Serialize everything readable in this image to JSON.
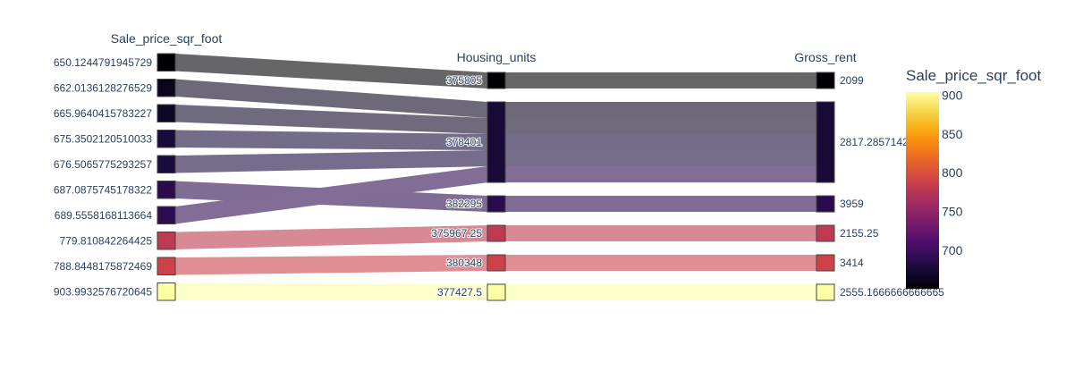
{
  "chart_data": {
    "type": "parallel_categories",
    "dimensions": [
      {
        "label": "Sale_price_sqr_foot",
        "categories": [
          "650.1244791945729",
          "662.0136128276529",
          "665.9640415783227",
          "675.3502120510033",
          "676.5065775293257",
          "687.0875745178322",
          "689.5558168113664",
          "779.810842264425",
          "788.8448175872469",
          "903.9932576720645"
        ]
      },
      {
        "label": "Housing_units",
        "categories": [
          "375805",
          "378401",
          "382295",
          "375967.25",
          "380348",
          "377427.5"
        ]
      },
      {
        "label": "Gross_rent",
        "categories": [
          "2099",
          "2817.285714285714",
          "3959",
          "2155.25",
          "3414",
          "2555.1666666666665"
        ]
      }
    ],
    "paths": [
      {
        "values": [
          "650.1244791945729",
          "375805",
          "2099"
        ],
        "color_value": 650.12
      },
      {
        "values": [
          "662.0136128276529",
          "378401",
          "2817.285714285714"
        ],
        "color_value": 662.01
      },
      {
        "values": [
          "665.9640415783227",
          "378401",
          "2817.285714285714"
        ],
        "color_value": 665.96
      },
      {
        "values": [
          "675.3502120510033",
          "378401",
          "2817.285714285714"
        ],
        "color_value": 675.35
      },
      {
        "values": [
          "676.5065775293257",
          "378401",
          "2817.285714285714"
        ],
        "color_value": 676.51
      },
      {
        "values": [
          "687.0875745178322",
          "382295",
          "3959"
        ],
        "color_value": 687.09
      },
      {
        "values": [
          "689.5558168113664",
          "378401",
          "2817.285714285714"
        ],
        "color_value": 689.56
      },
      {
        "values": [
          "779.810842264425",
          "375967.25",
          "2155.25"
        ],
        "color_value": 779.81
      },
      {
        "values": [
          "788.8448175872469",
          "380348",
          "3414"
        ],
        "color_value": 788.84
      },
      {
        "values": [
          "903.9932576720645",
          "377427.5",
          "2555.1666666666665"
        ],
        "color_value": 903.99
      }
    ],
    "colorbar": {
      "title": "Sale_price_sqr_foot",
      "colorscale": "inferno",
      "range": [
        650.12,
        903.99
      ],
      "ticks": [
        700,
        750,
        800,
        850,
        900
      ]
    }
  }
}
